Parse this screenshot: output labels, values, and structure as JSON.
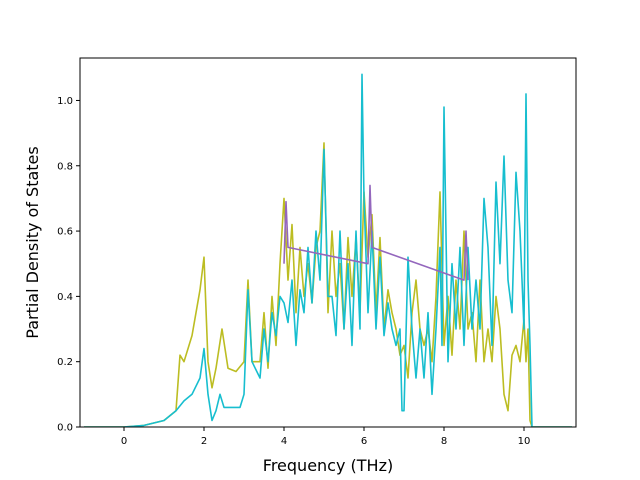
{
  "chart_data": {
    "type": "line",
    "title": "",
    "xlabel": "Frequency (THz)",
    "ylabel": "Partial Density of States",
    "xlim": [
      -1.1,
      11.3
    ],
    "ylim": [
      0.0,
      1.13
    ],
    "xticks": [
      0,
      2,
      4,
      6,
      8,
      10
    ],
    "xtick_labels": [
      "0",
      "2",
      "4",
      "6",
      "8",
      "10"
    ],
    "yticks": [
      0.0,
      0.2,
      0.4,
      0.6,
      0.8,
      1.0
    ],
    "ytick_labels": [
      "0.0",
      "0.2",
      "0.4",
      "0.6",
      "0.8",
      "1.0"
    ],
    "grid": false,
    "series": [
      {
        "color": "#bcbd22",
        "x": [
          -1.0,
          0.0,
          0.5,
          1.0,
          1.3,
          1.4,
          1.5,
          1.7,
          1.9,
          2.0,
          2.1,
          2.2,
          2.3,
          2.45,
          2.6,
          2.8,
          3.0,
          3.1,
          3.2,
          3.4,
          3.5,
          3.6,
          3.7,
          3.8,
          3.9,
          4.0,
          4.1,
          4.2,
          4.3,
          4.4,
          4.5,
          4.6,
          4.7,
          4.8,
          4.9,
          5.0,
          5.1,
          5.2,
          5.3,
          5.4,
          5.5,
          5.6,
          5.7,
          5.8,
          5.9,
          6.0,
          6.1,
          6.2,
          6.3,
          6.4,
          6.5,
          6.6,
          6.7,
          6.8,
          6.9,
          7.0,
          7.1,
          7.2,
          7.3,
          7.4,
          7.5,
          7.6,
          7.7,
          7.8,
          7.9,
          8.0,
          8.1,
          8.2,
          8.3,
          8.4,
          8.5,
          8.6,
          8.7,
          8.8,
          8.9,
          9.0,
          9.1,
          9.2,
          9.3,
          9.4,
          9.5,
          9.6,
          9.7,
          9.8,
          9.9,
          10.0,
          10.05,
          10.1,
          10.15,
          10.2,
          11.2
        ],
        "y": [
          0.0,
          0.0,
          0.005,
          0.02,
          0.05,
          0.22,
          0.2,
          0.28,
          0.42,
          0.52,
          0.2,
          0.12,
          0.18,
          0.3,
          0.18,
          0.17,
          0.2,
          0.45,
          0.2,
          0.2,
          0.35,
          0.18,
          0.4,
          0.25,
          0.5,
          0.7,
          0.45,
          0.62,
          0.35,
          0.55,
          0.4,
          0.5,
          0.38,
          0.55,
          0.6,
          0.87,
          0.35,
          0.6,
          0.4,
          0.5,
          0.3,
          0.58,
          0.4,
          0.58,
          0.35,
          0.72,
          0.52,
          0.65,
          0.35,
          0.58,
          0.3,
          0.42,
          0.35,
          0.3,
          0.22,
          0.25,
          0.15,
          0.35,
          0.45,
          0.3,
          0.25,
          0.3,
          0.2,
          0.4,
          0.72,
          0.25,
          0.4,
          0.22,
          0.45,
          0.3,
          0.6,
          0.3,
          0.35,
          0.2,
          0.45,
          0.2,
          0.3,
          0.2,
          0.4,
          0.3,
          0.1,
          0.05,
          0.22,
          0.25,
          0.2,
          0.33,
          0.2,
          0.3,
          0.02,
          0.0,
          0.0
        ]
      },
      {
        "color": "#17becf",
        "x": [
          -1.0,
          0.0,
          0.5,
          1.0,
          1.3,
          1.5,
          1.7,
          1.9,
          2.0,
          2.1,
          2.2,
          2.3,
          2.4,
          2.5,
          2.7,
          2.9,
          3.0,
          3.1,
          3.2,
          3.4,
          3.5,
          3.6,
          3.7,
          3.8,
          3.9,
          4.0,
          4.1,
          4.2,
          4.3,
          4.4,
          4.5,
          4.6,
          4.7,
          4.8,
          4.9,
          5.0,
          5.1,
          5.2,
          5.3,
          5.4,
          5.5,
          5.6,
          5.7,
          5.8,
          5.9,
          5.95,
          6.0,
          6.1,
          6.2,
          6.3,
          6.4,
          6.5,
          6.6,
          6.7,
          6.8,
          6.9,
          6.95,
          7.0,
          7.1,
          7.2,
          7.3,
          7.4,
          7.5,
          7.6,
          7.7,
          7.8,
          7.9,
          7.95,
          8.0,
          8.1,
          8.2,
          8.3,
          8.4,
          8.5,
          8.6,
          8.7,
          8.8,
          8.9,
          9.0,
          9.1,
          9.2,
          9.3,
          9.4,
          9.5,
          9.6,
          9.7,
          9.8,
          9.9,
          10.0,
          10.05,
          10.1,
          10.15,
          10.2,
          11.2
        ],
        "y": [
          0.0,
          0.0,
          0.005,
          0.02,
          0.05,
          0.08,
          0.1,
          0.15,
          0.24,
          0.1,
          0.02,
          0.05,
          0.1,
          0.06,
          0.06,
          0.06,
          0.1,
          0.42,
          0.2,
          0.15,
          0.3,
          0.2,
          0.35,
          0.28,
          0.4,
          0.38,
          0.32,
          0.45,
          0.25,
          0.42,
          0.35,
          0.55,
          0.38,
          0.6,
          0.45,
          0.85,
          0.4,
          0.4,
          0.28,
          0.6,
          0.3,
          0.5,
          0.25,
          0.6,
          0.3,
          1.08,
          0.7,
          0.35,
          0.6,
          0.3,
          0.52,
          0.28,
          0.38,
          0.3,
          0.25,
          0.3,
          0.05,
          0.05,
          0.52,
          0.3,
          0.15,
          0.3,
          0.15,
          0.35,
          0.1,
          0.3,
          0.55,
          0.25,
          0.98,
          0.2,
          0.5,
          0.3,
          0.55,
          0.25,
          0.55,
          0.3,
          0.45,
          0.3,
          0.7,
          0.55,
          0.25,
          0.75,
          0.5,
          0.83,
          0.45,
          0.35,
          0.78,
          0.6,
          0.3,
          1.02,
          0.45,
          0.25,
          0.0,
          0.0
        ]
      },
      {
        "color": "#9467bd",
        "x": [
          4.0,
          4.05,
          4.1,
          6.1,
          6.15,
          6.2,
          8.5,
          8.55,
          8.6
        ],
        "y": [
          0.5,
          0.69,
          0.55,
          0.5,
          0.74,
          0.55,
          0.45,
          0.6,
          0.45
        ]
      }
    ]
  }
}
